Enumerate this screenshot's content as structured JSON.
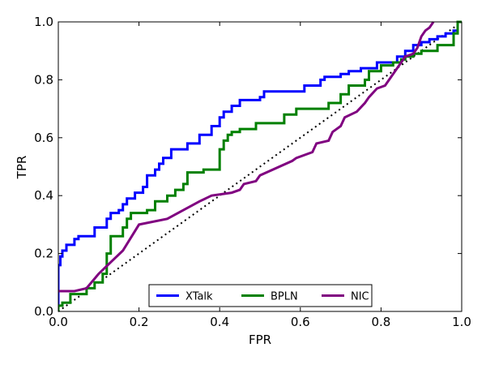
{
  "chart_data": {
    "type": "line",
    "title": "",
    "xlabel": "FPR",
    "ylabel": "TPR",
    "xlim": [
      0.0,
      1.0
    ],
    "ylim": [
      0.0,
      1.0
    ],
    "xticks": [
      "0.0",
      "0.2",
      "0.4",
      "0.6",
      "0.8",
      "1.0"
    ],
    "yticks": [
      "0.0",
      "0.2",
      "0.4",
      "0.6",
      "0.8",
      "1.0"
    ],
    "grid": false,
    "legend_position": "lower-center",
    "reference_line": {
      "style": "dotted",
      "color": "#000000",
      "x": [
        0,
        1
      ],
      "y": [
        0,
        1
      ]
    },
    "series": [
      {
        "name": "XTalk",
        "color": "#0000ff",
        "x": [
          0.0,
          0.0,
          0.005,
          0.005,
          0.01,
          0.01,
          0.02,
          0.02,
          0.04,
          0.04,
          0.05,
          0.05,
          0.09,
          0.09,
          0.12,
          0.12,
          0.13,
          0.13,
          0.15,
          0.15,
          0.16,
          0.16,
          0.17,
          0.17,
          0.19,
          0.19,
          0.21,
          0.21,
          0.22,
          0.22,
          0.24,
          0.24,
          0.25,
          0.25,
          0.26,
          0.26,
          0.28,
          0.28,
          0.32,
          0.32,
          0.35,
          0.35,
          0.38,
          0.38,
          0.4,
          0.4,
          0.41,
          0.41,
          0.43,
          0.43,
          0.45,
          0.45,
          0.5,
          0.5,
          0.51,
          0.51,
          0.61,
          0.61,
          0.65,
          0.65,
          0.66,
          0.66,
          0.7,
          0.7,
          0.72,
          0.72,
          0.75,
          0.75,
          0.79,
          0.79,
          0.84,
          0.84,
          0.86,
          0.86,
          0.88,
          0.88,
          0.9,
          0.9,
          0.92,
          0.92,
          0.94,
          0.94,
          0.96,
          0.96,
          0.98,
          0.98,
          0.99,
          0.99,
          1.0
        ],
        "y": [
          0.0,
          0.16,
          0.16,
          0.19,
          0.19,
          0.21,
          0.21,
          0.23,
          0.23,
          0.25,
          0.25,
          0.26,
          0.26,
          0.29,
          0.29,
          0.32,
          0.32,
          0.34,
          0.34,
          0.35,
          0.35,
          0.37,
          0.37,
          0.39,
          0.39,
          0.41,
          0.41,
          0.43,
          0.43,
          0.47,
          0.47,
          0.49,
          0.49,
          0.51,
          0.51,
          0.53,
          0.53,
          0.56,
          0.56,
          0.58,
          0.58,
          0.61,
          0.61,
          0.64,
          0.64,
          0.67,
          0.67,
          0.69,
          0.69,
          0.71,
          0.71,
          0.73,
          0.73,
          0.74,
          0.74,
          0.76,
          0.76,
          0.78,
          0.78,
          0.8,
          0.8,
          0.81,
          0.81,
          0.82,
          0.82,
          0.83,
          0.83,
          0.84,
          0.84,
          0.86,
          0.86,
          0.88,
          0.88,
          0.9,
          0.9,
          0.92,
          0.92,
          0.93,
          0.93,
          0.94,
          0.94,
          0.95,
          0.95,
          0.96,
          0.96,
          0.97,
          0.97,
          1.0,
          1.0
        ]
      },
      {
        "name": "BPLN",
        "color": "#008000",
        "x": [
          0.0,
          0.0,
          0.01,
          0.01,
          0.03,
          0.03,
          0.07,
          0.07,
          0.09,
          0.09,
          0.11,
          0.11,
          0.12,
          0.12,
          0.13,
          0.13,
          0.16,
          0.16,
          0.17,
          0.17,
          0.18,
          0.18,
          0.22,
          0.22,
          0.24,
          0.24,
          0.27,
          0.27,
          0.29,
          0.29,
          0.31,
          0.31,
          0.32,
          0.32,
          0.36,
          0.36,
          0.4,
          0.4,
          0.41,
          0.41,
          0.42,
          0.42,
          0.43,
          0.43,
          0.45,
          0.45,
          0.49,
          0.49,
          0.56,
          0.56,
          0.59,
          0.59,
          0.67,
          0.67,
          0.7,
          0.7,
          0.72,
          0.72,
          0.76,
          0.76,
          0.77,
          0.77,
          0.8,
          0.8,
          0.83,
          0.83,
          0.85,
          0.85,
          0.86,
          0.86,
          0.88,
          0.88,
          0.9,
          0.9,
          0.94,
          0.94,
          0.98,
          0.98,
          0.99,
          0.99,
          1.0
        ],
        "y": [
          0.0,
          0.02,
          0.02,
          0.03,
          0.03,
          0.06,
          0.06,
          0.08,
          0.08,
          0.1,
          0.1,
          0.13,
          0.13,
          0.2,
          0.2,
          0.26,
          0.26,
          0.29,
          0.29,
          0.32,
          0.32,
          0.34,
          0.34,
          0.35,
          0.35,
          0.38,
          0.38,
          0.4,
          0.4,
          0.42,
          0.42,
          0.44,
          0.44,
          0.48,
          0.48,
          0.49,
          0.49,
          0.56,
          0.56,
          0.59,
          0.59,
          0.61,
          0.61,
          0.62,
          0.62,
          0.63,
          0.63,
          0.65,
          0.65,
          0.68,
          0.68,
          0.7,
          0.7,
          0.72,
          0.72,
          0.75,
          0.75,
          0.78,
          0.78,
          0.8,
          0.8,
          0.83,
          0.83,
          0.85,
          0.85,
          0.86,
          0.86,
          0.87,
          0.87,
          0.88,
          0.88,
          0.89,
          0.89,
          0.9,
          0.9,
          0.92,
          0.92,
          0.96,
          0.96,
          1.0,
          1.0
        ]
      },
      {
        "name": "NIC",
        "color": "#800080",
        "x": [
          0.0,
          0.04,
          0.07,
          0.1,
          0.13,
          0.16,
          0.2,
          0.27,
          0.31,
          0.35,
          0.38,
          0.43,
          0.45,
          0.46,
          0.49,
          0.5,
          0.58,
          0.59,
          0.63,
          0.64,
          0.67,
          0.68,
          0.7,
          0.71,
          0.74,
          0.76,
          0.77,
          0.79,
          0.81,
          0.84,
          0.85,
          0.86,
          0.88,
          0.89,
          0.9,
          0.91,
          0.92,
          0.93
        ],
        "y": [
          0.07,
          0.07,
          0.08,
          0.13,
          0.17,
          0.21,
          0.3,
          0.32,
          0.35,
          0.38,
          0.4,
          0.41,
          0.42,
          0.44,
          0.45,
          0.47,
          0.52,
          0.53,
          0.55,
          0.58,
          0.59,
          0.62,
          0.64,
          0.67,
          0.69,
          0.72,
          0.74,
          0.77,
          0.78,
          0.84,
          0.86,
          0.88,
          0.89,
          0.91,
          0.95,
          0.97,
          0.98,
          1.0
        ]
      }
    ]
  }
}
